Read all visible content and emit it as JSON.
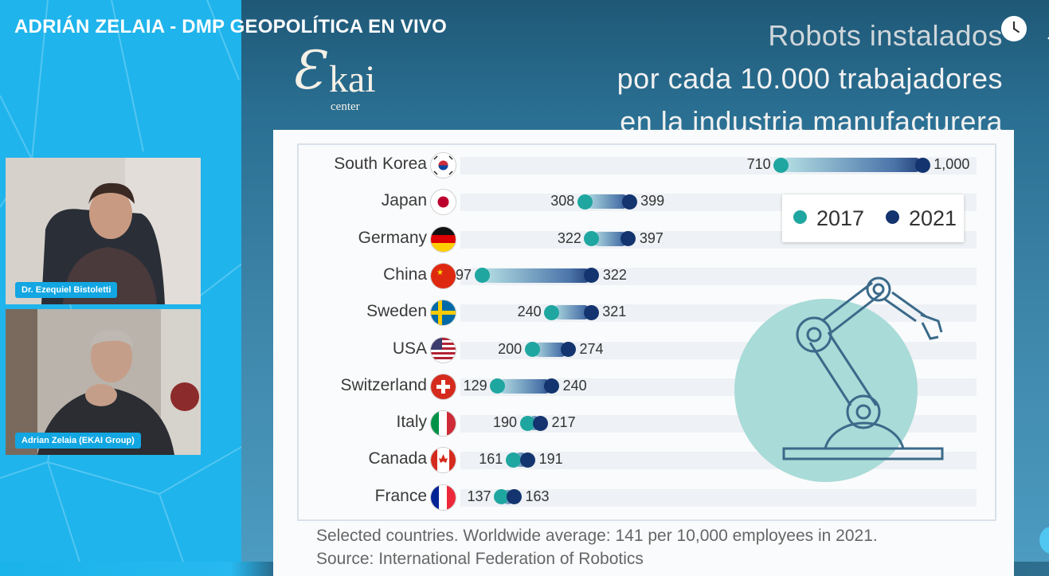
{
  "video": {
    "title": "ADRIÁN ZELAIA - DMP GEOPOLÍTICA EN VIVO"
  },
  "participants": [
    {
      "name": "Dr. Ezequiel Bistoletti"
    },
    {
      "name": "Adrian Zelaia (EKAI Group)"
    }
  ],
  "slide": {
    "title_lines": [
      "Robots instalados",
      "por cada 10.000 trabajadores",
      "en la industria manufacturera"
    ],
    "logo": "Ekai center"
  },
  "chart_data": {
    "type": "dumbbell",
    "legend": [
      "2017",
      "2021"
    ],
    "legend_position": "top-right",
    "colors": {
      "2017": "#1fa6a0",
      "2021": "#13346e"
    },
    "rows": [
      {
        "country": "South Korea",
        "v2017": 710,
        "v2021": 1000,
        "label2017": "710",
        "label2021": "1,000"
      },
      {
        "country": "Japan",
        "v2017": 308,
        "v2021": 399,
        "label2017": "308",
        "label2021": "399"
      },
      {
        "country": "Germany",
        "v2017": 322,
        "v2021": 397,
        "label2017": "322",
        "label2021": "397"
      },
      {
        "country": "China",
        "v2017": 97,
        "v2021": 322,
        "label2017": "97",
        "label2021": "322"
      },
      {
        "country": "Sweden",
        "v2017": 240,
        "v2021": 321,
        "label2017": "240",
        "label2021": "321"
      },
      {
        "country": "USA",
        "v2017": 200,
        "v2021": 274,
        "label2017": "200",
        "label2021": "274"
      },
      {
        "country": "Switzerland",
        "v2017": 129,
        "v2021": 240,
        "label2017": "129",
        "label2021": "240"
      },
      {
        "country": "Italy",
        "v2017": 190,
        "v2021": 217,
        "label2017": "190",
        "label2021": "217"
      },
      {
        "country": "Canada",
        "v2017": 161,
        "v2021": 191,
        "label2017": "161",
        "label2021": "191"
      },
      {
        "country": "France",
        "v2017": 137,
        "v2021": 163,
        "label2017": "137",
        "label2021": "163"
      }
    ],
    "footnote": "Selected countries. Worldwide average: 141 per 10,000 employees in 2021.",
    "source": "Source: International Federation of Robotics"
  }
}
